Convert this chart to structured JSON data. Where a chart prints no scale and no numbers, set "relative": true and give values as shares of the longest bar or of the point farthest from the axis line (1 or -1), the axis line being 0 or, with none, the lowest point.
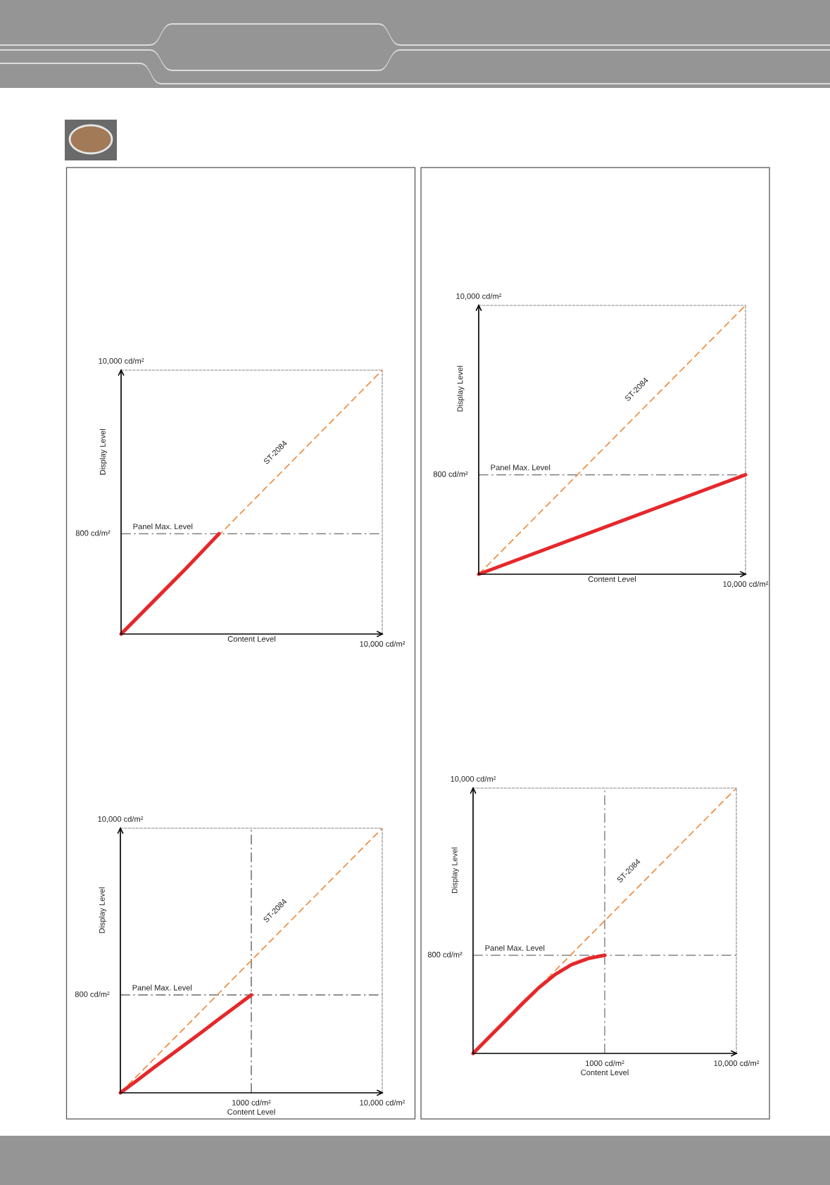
{
  "chart_data": [
    {
      "type": "line",
      "relative": true,
      "xlabel": "Content Level",
      "ylabel": "Display Level",
      "categories": [
        null,
        null,
        null,
        null,
        null,
        null,
        null,
        null,
        null
      ],
      "series": [
        {
          "name": "ST-2084",
          "color": "#ef8a3d",
          "line_style": "dashed",
          "values": [
            0,
            0.125,
            0.25,
            0.375,
            0.5,
            0.625,
            0.75,
            0.875,
            1
          ]
        },
        {
          "color": "#e5282b",
          "line_style": "solid",
          "values": [
            0,
            0.125,
            0.25,
            0.38,
            null,
            null,
            null,
            null,
            null
          ]
        }
      ],
      "ref_lines": [
        {
          "axis": "y",
          "value": 0.38,
          "label": "Panel Max. Level",
          "color": "#808080",
          "line_style": "dashdot"
        }
      ],
      "annotations": [
        "10,000 cd/m²",
        "800 cd/m²",
        "10,000 cd/m²"
      ]
    },
    {
      "type": "line",
      "relative": true,
      "xlabel": "Content Level",
      "ylabel": "Display Level",
      "categories": [
        null,
        null
      ],
      "series": [
        {
          "name": "ST-2084",
          "color": "#ef8a3d",
          "line_style": "dashed",
          "values": [
            0,
            1
          ]
        },
        {
          "color": "#e5282b",
          "line_style": "solid",
          "values": [
            0,
            0.37
          ]
        }
      ],
      "ref_lines": [
        {
          "axis": "y",
          "value": 0.37,
          "label": "Panel Max. Level",
          "color": "#808080",
          "line_style": "dashdot"
        }
      ],
      "annotations": [
        "10,000 cd/m²",
        "800 cd/m²",
        "10,000 cd/m²"
      ]
    },
    {
      "type": "line",
      "relative": true,
      "xlabel": "Content Level",
      "ylabel": "Display Level",
      "categories": [
        null,
        null,
        null,
        null,
        null,
        null,
        null,
        null,
        "1000 cd/m²",
        null,
        null,
        null,
        null,
        null,
        null,
        null,
        "10,000 cd/m²"
      ],
      "series": [
        {
          "name": "ST-2084",
          "color": "#ef8a3d",
          "line_style": "dashed",
          "values": [
            0,
            0.063,
            0.125,
            0.188,
            0.25,
            0.313,
            0.375,
            0.438,
            0.5,
            0.563,
            0.625,
            0.688,
            0.75,
            0.813,
            0.875,
            0.938,
            1
          ]
        },
        {
          "color": "#e5282b",
          "line_style": "solid",
          "values": [
            0,
            0.046,
            0.093,
            0.139,
            0.185,
            0.231,
            0.278,
            0.324,
            0.37,
            null,
            null,
            null,
            null,
            null,
            null,
            null,
            null
          ]
        }
      ],
      "ref_lines": [
        {
          "axis": "y",
          "value": 0.37,
          "label": "Panel Max. Level",
          "color": "#808080",
          "line_style": "dashdot"
        },
        {
          "axis": "x",
          "value": "1000 cd/m²",
          "color": "#6e6e6e",
          "line_style": "dashdot"
        }
      ],
      "annotations": [
        "10,000 cd/m²",
        "800 cd/m²"
      ]
    },
    {
      "type": "line",
      "relative": true,
      "xlabel": "Content Level",
      "ylabel": "Display Level",
      "categories": [
        null,
        null,
        null,
        null,
        null,
        null,
        null,
        null,
        "1000 cd/m²",
        null,
        null,
        null,
        null,
        null,
        null,
        null,
        "10,000 cd/m²"
      ],
      "series": [
        {
          "name": "ST-2084",
          "color": "#ef8a3d",
          "line_style": "dashed",
          "values": [
            0,
            0.063,
            0.125,
            0.188,
            0.25,
            0.313,
            0.375,
            0.438,
            0.5,
            0.563,
            0.625,
            0.688,
            0.75,
            0.813,
            0.875,
            0.938,
            1
          ]
        },
        {
          "color": "#e5282b",
          "line_style": "solid",
          "values": [
            0,
            0.063,
            0.125,
            0.188,
            0.248,
            0.298,
            0.335,
            0.358,
            0.37,
            null,
            null,
            null,
            null,
            null,
            null,
            null,
            null
          ]
        }
      ],
      "ref_lines": [
        {
          "axis": "y",
          "value": 0.37,
          "label": "Panel Max. Level",
          "color": "#808080",
          "line_style": "dashdot"
        },
        {
          "axis": "x",
          "value": "1000 cd/m²",
          "color": "#8a8a8a",
          "line_style": "dashdot"
        }
      ],
      "annotations": [
        "10,000 cd/m²",
        "800 cd/m²"
      ]
    }
  ]
}
